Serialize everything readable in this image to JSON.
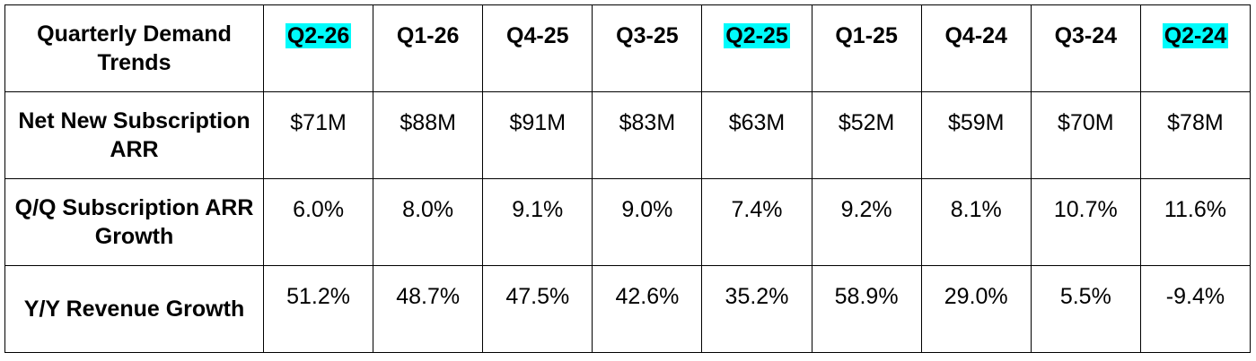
{
  "table": {
    "header": [
      "Quarterly Demand Trends",
      "Q2-26",
      "Q1-26",
      "Q4-25",
      "Q3-25",
      "Q2-25",
      "Q1-25",
      "Q4-24",
      "Q3-24",
      "Q2-24"
    ],
    "rows": [
      [
        "Net New Subscription ARR",
        "$71M",
        "$88M",
        "$91M",
        "$83M",
        "$63M",
        "$52M",
        "$59M",
        "$70M",
        "$78M"
      ],
      [
        "Q/Q Subscription ARR Growth",
        "6.0%",
        "8.0%",
        "9.1%",
        "9.0%",
        "7.4%",
        "9.2%",
        "8.1%",
        "10.7%",
        "11.6%"
      ],
      [
        "Y/Y Revenue Growth",
        "51.2%",
        "48.7%",
        "47.5%",
        "42.6%",
        "35.2%",
        "58.9%",
        "29.0%",
        "5.5%",
        "-9.4%"
      ]
    ],
    "highlight": {
      "color": "#00fbfb",
      "columns": [
        1,
        5,
        9
      ]
    }
  }
}
